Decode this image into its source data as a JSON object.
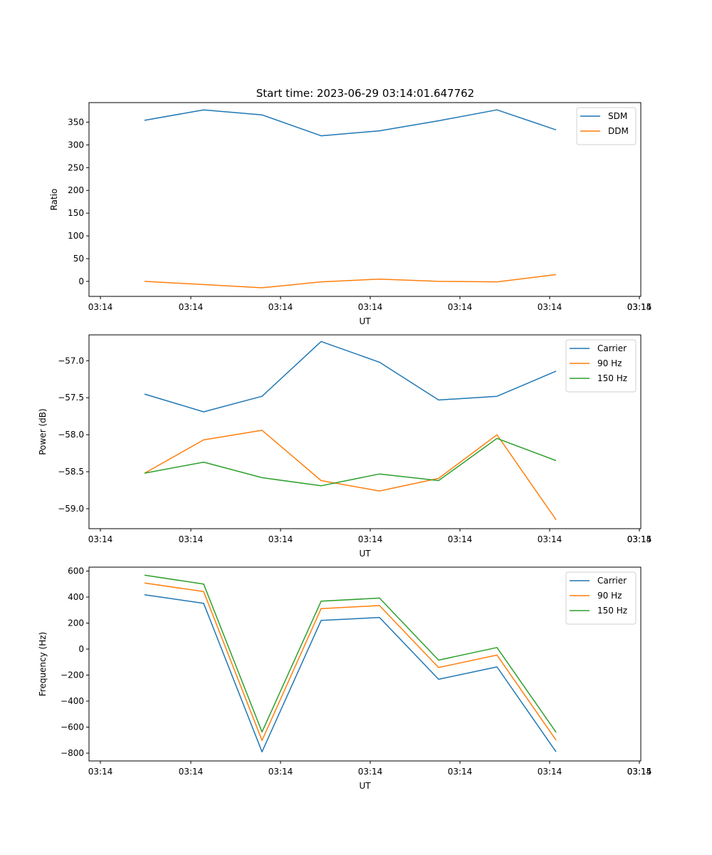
{
  "figure_title": "Start time: 2023-06-29 03:14:01.647762",
  "chart_data": [
    {
      "type": "line",
      "title": "Start time: 2023-06-29 03:14:01.647762",
      "xlabel": "UT",
      "ylabel": "Ratio",
      "x_ticks": [
        "03:14",
        "03:14",
        "03:14",
        "03:14",
        "03:14",
        "03:14",
        "03:14",
        "03:15"
      ],
      "ylim": [
        -33,
        393
      ],
      "y_ticks": [
        0,
        50,
        100,
        150,
        200,
        250,
        300,
        350
      ],
      "legend_position": "top-right",
      "series": [
        {
          "name": "SDM",
          "color": "#1f77b4",
          "values": [
            354,
            377,
            366,
            320,
            331,
            353,
            377,
            333
          ]
        },
        {
          "name": "DDM",
          "color": "#ff7f0e",
          "values": [
            0,
            -7,
            -14,
            -1,
            5,
            0,
            -1,
            15
          ]
        }
      ]
    },
    {
      "type": "line",
      "title": "",
      "xlabel": "UT",
      "ylabel": "Power (dB)",
      "x_ticks": [
        "03:14",
        "03:14",
        "03:14",
        "03:14",
        "03:14",
        "03:14",
        "03:14",
        "03:15"
      ],
      "ylim": [
        -59.27,
        -56.65
      ],
      "y_ticks": [
        -59.0,
        -58.5,
        -58.0,
        -57.5,
        -57.0
      ],
      "legend_position": "top-right",
      "series": [
        {
          "name": "Carrier",
          "color": "#1f77b4",
          "values": [
            -57.45,
            -57.69,
            -57.48,
            -56.74,
            -57.02,
            -57.53,
            -57.48,
            -57.14
          ]
        },
        {
          "name": "90 Hz",
          "color": "#ff7f0e",
          "values": [
            -58.52,
            -58.07,
            -57.94,
            -58.62,
            -58.76,
            -58.59,
            -58.0,
            -59.15
          ]
        },
        {
          "name": "150 Hz",
          "color": "#2ca02c",
          "values": [
            -58.52,
            -58.37,
            -58.58,
            -58.69,
            -58.53,
            -58.62,
            -58.05,
            -58.35
          ]
        }
      ]
    },
    {
      "type": "line",
      "title": "",
      "xlabel": "UT",
      "ylabel": "Frequency (Hz)",
      "x_ticks": [
        "03:14",
        "03:14",
        "03:14",
        "03:14",
        "03:14",
        "03:14",
        "03:14",
        "03:15"
      ],
      "ylim": [
        -860,
        630
      ],
      "y_ticks": [
        -800,
        -600,
        -400,
        -200,
        0,
        200,
        400,
        600
      ],
      "legend_position": "top-right",
      "series": [
        {
          "name": "Carrier",
          "color": "#1f77b4",
          "values": [
            418,
            352,
            -790,
            220,
            243,
            -232,
            -137,
            -790
          ]
        },
        {
          "name": "90 Hz",
          "color": "#ff7f0e",
          "values": [
            508,
            442,
            -702,
            311,
            335,
            -142,
            -46,
            -700
          ]
        },
        {
          "name": "150 Hz",
          "color": "#2ca02c",
          "values": [
            568,
            500,
            -637,
            368,
            392,
            -85,
            12,
            -640
          ]
        }
      ]
    }
  ]
}
